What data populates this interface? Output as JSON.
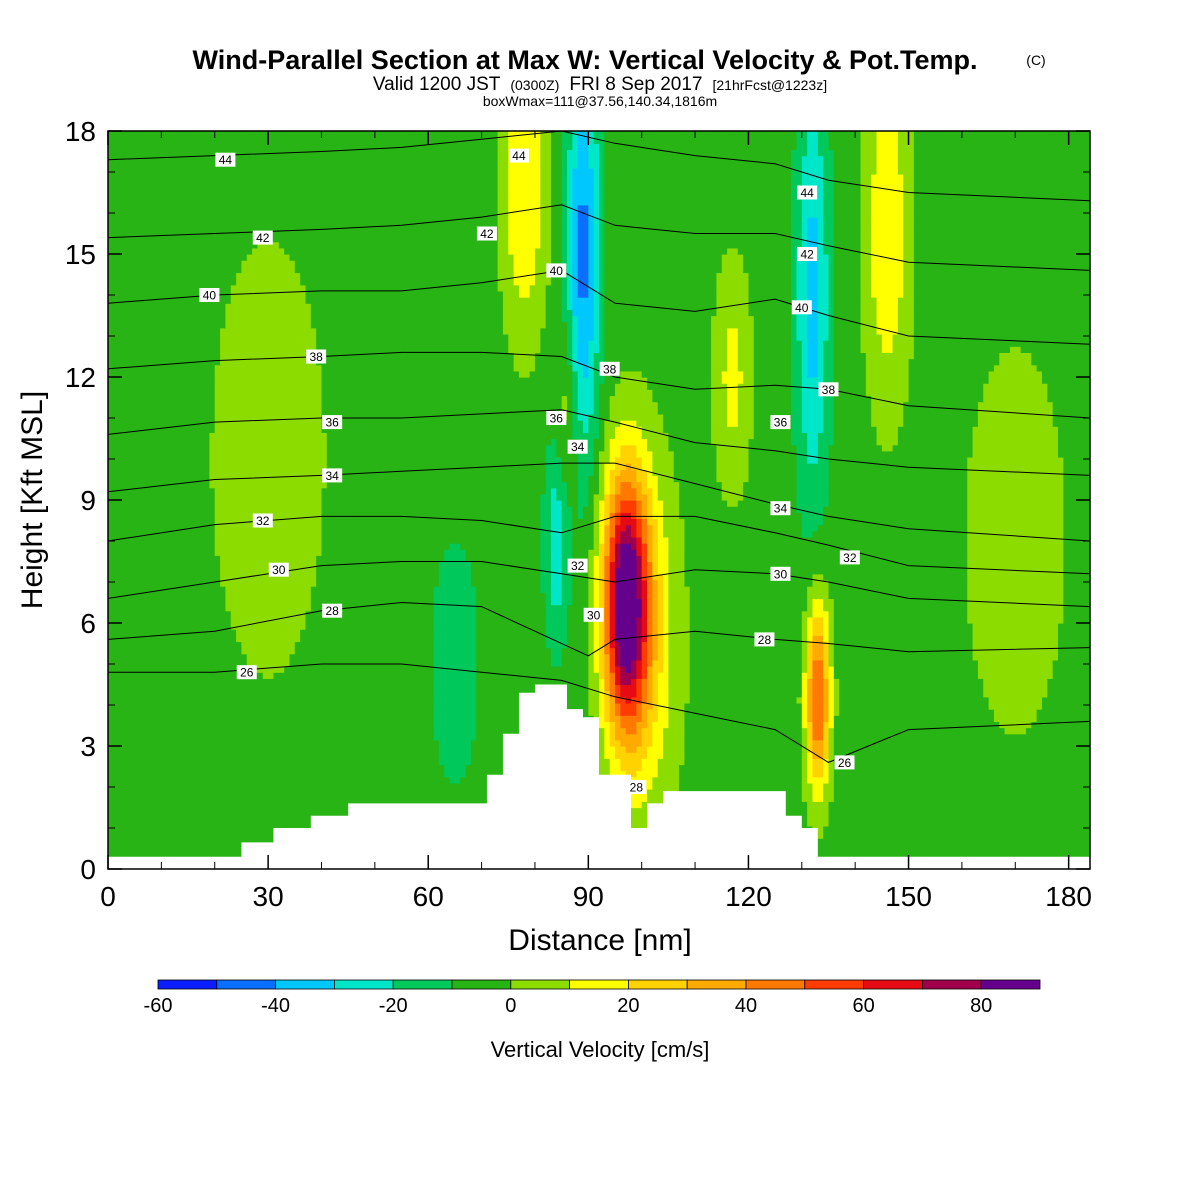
{
  "title": {
    "main": "Wind-Parallel Section at Max W: Vertical Velocity & Pot.Temp.",
    "copyright": "(C)",
    "valid_prefix": "Valid 1200 JST",
    "valid_utc": "(0300Z)",
    "valid_date": "FRI 8 Sep 2017",
    "forecast": "[21hrFcst@1223z]",
    "boxwmax": "boxWmax=111@37.56,140.34,1816m"
  },
  "chart_data": {
    "type": "heatmap",
    "title": "Wind-Parallel Section at Max W: Vertical Velocity & Pot.Temp.",
    "xlabel": "Distance [nm]",
    "ylabel": "Height [Kft MSL]",
    "xlim": [
      0,
      184
    ],
    "ylim": [
      0,
      18
    ],
    "x_ticks": [
      "0",
      "30",
      "60",
      "90",
      "120",
      "150",
      "180"
    ],
    "y_ticks": [
      "0",
      "3",
      "6",
      "9",
      "12",
      "15",
      "18"
    ],
    "x_tick_values": [
      0,
      30,
      60,
      90,
      120,
      150,
      180
    ],
    "y_tick_values": [
      0,
      3,
      6,
      9,
      12,
      15,
      18
    ],
    "colorbar": {
      "title": "Vertical Velocity [cm/s]",
      "levels": [
        -60,
        -50,
        -40,
        -30,
        -20,
        -10,
        0,
        10,
        20,
        30,
        40,
        50,
        60,
        70,
        80,
        90
      ],
      "labels": [
        "-60",
        "-40",
        "-20",
        "0",
        "20",
        "40",
        "60",
        "80"
      ],
      "label_values": [
        -60,
        -40,
        -20,
        0,
        20,
        40,
        60,
        80
      ],
      "colors": [
        "#0a1eff",
        "#0a6eff",
        "#00c8ff",
        "#00e6c8",
        "#00c85a",
        "#28b414",
        "#8cdc00",
        "#ffff00",
        "#ffd200",
        "#ffaa00",
        "#ff7800",
        "#ff3c00",
        "#e60a14",
        "#a0004b",
        "#64008c"
      ]
    },
    "background_level": -5,
    "velocity_features": [
      {
        "x": 97,
        "y": 6.5,
        "sx": 3.0,
        "sy": 2.2,
        "w": 93
      },
      {
        "x": 101,
        "y": 5.5,
        "sx": 4.5,
        "sy": 3.2,
        "w": 22
      },
      {
        "x": 133,
        "y": 4.2,
        "sx": 1.6,
        "sy": 1.6,
        "w": 58
      },
      {
        "x": 84,
        "y": 8.0,
        "sx": 1.6,
        "sy": 1.8,
        "w": -22
      },
      {
        "x": 89,
        "y": 15.0,
        "sx": 2.2,
        "sy": 3.5,
        "w": -38
      },
      {
        "x": 132,
        "y": 14.0,
        "sx": 2.2,
        "sy": 3.5,
        "w": -30
      },
      {
        "x": 78,
        "y": 16.5,
        "sx": 3.0,
        "sy": 2.5,
        "w": 25
      },
      {
        "x": 146,
        "y": 15.5,
        "sx": 3.0,
        "sy": 3.0,
        "w": 24
      },
      {
        "x": 117,
        "y": 12.0,
        "sx": 2.5,
        "sy": 2.0,
        "w": 18
      },
      {
        "x": 86,
        "y": 11.0,
        "sx": 1.5,
        "sy": 1.5,
        "w": 15
      },
      {
        "x": 30,
        "y": 10.0,
        "sx": 8.0,
        "sy": 4.0,
        "w": 12
      },
      {
        "x": 65,
        "y": 5.0,
        "sx": 3.0,
        "sy": 2.0,
        "w": -15
      },
      {
        "x": 170,
        "y": 8.0,
        "sx": 8.0,
        "sy": 4.0,
        "w": 10
      }
    ],
    "terrain": {
      "x": [
        0,
        25,
        25,
        31,
        31,
        38,
        38,
        45,
        45,
        71,
        71,
        74,
        74,
        77,
        77,
        80,
        80,
        83,
        83,
        86,
        86,
        89,
        89,
        92,
        92,
        98,
        98,
        101,
        101,
        104,
        104,
        107,
        107,
        117,
        117,
        127,
        127,
        130,
        130,
        133,
        133,
        184
      ],
      "y": [
        0.3,
        0.3,
        0.65,
        0.65,
        1.0,
        1.0,
        1.3,
        1.3,
        1.6,
        1.6,
        2.3,
        2.3,
        3.3,
        3.3,
        4.3,
        4.3,
        4.5,
        4.5,
        4.5,
        4.5,
        3.9,
        3.9,
        3.7,
        3.7,
        2.3,
        2.3,
        1.0,
        1.0,
        1.6,
        1.6,
        1.9,
        1.9,
        1.9,
        1.9,
        1.9,
        1.9,
        1.3,
        1.3,
        1.0,
        1.0,
        0.3,
        0.3
      ]
    },
    "theta_contours": [
      {
        "label": "26",
        "x": [
          0,
          20,
          40,
          55,
          70,
          85,
          95,
          110,
          125,
          135,
          150,
          184
        ],
        "y": [
          4.8,
          4.8,
          5.0,
          5.0,
          4.8,
          4.6,
          4.2,
          3.8,
          3.4,
          2.6,
          3.4,
          3.6
        ]
      },
      {
        "label": "28",
        "x": [
          0,
          20,
          40,
          55,
          70,
          80,
          90,
          95,
          110,
          125,
          135,
          150,
          184
        ],
        "y": [
          5.6,
          5.8,
          6.3,
          6.5,
          6.4,
          5.8,
          5.2,
          5.6,
          5.8,
          5.6,
          5.5,
          5.3,
          5.4
        ]
      },
      {
        "label": "30",
        "x": [
          0,
          20,
          40,
          55,
          70,
          85,
          95,
          110,
          125,
          135,
          150,
          184
        ],
        "y": [
          6.6,
          7.0,
          7.4,
          7.5,
          7.5,
          7.2,
          7.0,
          7.3,
          7.2,
          7.0,
          6.6,
          6.4
        ]
      },
      {
        "label": "32",
        "x": [
          0,
          20,
          40,
          55,
          70,
          85,
          95,
          110,
          125,
          135,
          150,
          184
        ],
        "y": [
          8.0,
          8.4,
          8.6,
          8.6,
          8.5,
          8.2,
          8.6,
          8.6,
          8.2,
          7.9,
          7.4,
          7.2
        ]
      },
      {
        "label": "34",
        "x": [
          0,
          20,
          40,
          55,
          70,
          85,
          95,
          110,
          125,
          135,
          150,
          184
        ],
        "y": [
          9.2,
          9.5,
          9.6,
          9.7,
          9.8,
          9.9,
          9.9,
          9.4,
          8.9,
          8.6,
          8.3,
          8.0
        ]
      },
      {
        "label": "36",
        "x": [
          0,
          20,
          40,
          55,
          70,
          85,
          95,
          110,
          125,
          135,
          150,
          184
        ],
        "y": [
          10.6,
          10.9,
          11.0,
          11.0,
          11.1,
          11.2,
          10.9,
          10.4,
          10.2,
          10.0,
          9.8,
          9.6
        ]
      },
      {
        "label": "38",
        "x": [
          0,
          20,
          40,
          55,
          70,
          85,
          95,
          110,
          125,
          135,
          150,
          184
        ],
        "y": [
          12.2,
          12.4,
          12.5,
          12.6,
          12.6,
          12.5,
          12.0,
          11.7,
          11.8,
          11.7,
          11.3,
          11.0
        ]
      },
      {
        "label": "40",
        "x": [
          0,
          20,
          40,
          55,
          70,
          85,
          95,
          110,
          125,
          135,
          150,
          184
        ],
        "y": [
          13.8,
          14.0,
          14.1,
          14.1,
          14.3,
          14.6,
          13.8,
          13.6,
          13.9,
          13.5,
          13.0,
          12.8
        ]
      },
      {
        "label": "42",
        "x": [
          0,
          20,
          40,
          55,
          70,
          85,
          95,
          110,
          125,
          135,
          150,
          184
        ],
        "y": [
          15.4,
          15.5,
          15.6,
          15.7,
          15.9,
          16.2,
          15.7,
          15.5,
          15.5,
          15.2,
          14.8,
          14.6
        ]
      },
      {
        "label": "44",
        "x": [
          0,
          20,
          40,
          55,
          70,
          85,
          95,
          110,
          125,
          135,
          150,
          184
        ],
        "y": [
          17.3,
          17.4,
          17.5,
          17.6,
          17.8,
          18.0,
          17.7,
          17.4,
          17.2,
          16.8,
          16.5,
          16.3
        ]
      }
    ],
    "theta_label_positions": [
      {
        "label": "44",
        "x": 22,
        "y": 17.3
      },
      {
        "label": "44",
        "x": 77,
        "y": 17.4
      },
      {
        "label": "44",
        "x": 131,
        "y": 16.5
      },
      {
        "label": "42",
        "x": 29,
        "y": 15.4
      },
      {
        "label": "42",
        "x": 71,
        "y": 15.5
      },
      {
        "label": "42",
        "x": 131,
        "y": 15.0
      },
      {
        "label": "40",
        "x": 19,
        "y": 14.0
      },
      {
        "label": "40",
        "x": 84,
        "y": 14.6
      },
      {
        "label": "40",
        "x": 130,
        "y": 13.7
      },
      {
        "label": "38",
        "x": 39,
        "y": 12.5
      },
      {
        "label": "38",
        "x": 94,
        "y": 12.2
      },
      {
        "label": "38",
        "x": 135,
        "y": 11.7
      },
      {
        "label": "36",
        "x": 42,
        "y": 10.9
      },
      {
        "label": "36",
        "x": 84,
        "y": 11.0
      },
      {
        "label": "36",
        "x": 126,
        "y": 10.9
      },
      {
        "label": "34",
        "x": 42,
        "y": 9.6
      },
      {
        "label": "34",
        "x": 88,
        "y": 10.3
      },
      {
        "label": "34",
        "x": 126,
        "y": 8.8
      },
      {
        "label": "32",
        "x": 29,
        "y": 8.5
      },
      {
        "label": "32",
        "x": 88,
        "y": 7.4
      },
      {
        "label": "32",
        "x": 139,
        "y": 7.6
      },
      {
        "label": "30",
        "x": 32,
        "y": 7.3
      },
      {
        "label": "30",
        "x": 91,
        "y": 6.2
      },
      {
        "label": "30",
        "x": 126,
        "y": 7.2
      },
      {
        "label": "28",
        "x": 42,
        "y": 6.3
      },
      {
        "label": "28",
        "x": 99,
        "y": 2.0
      },
      {
        "label": "28",
        "x": 123,
        "y": 5.6
      },
      {
        "label": "26",
        "x": 26,
        "y": 4.8
      },
      {
        "label": "26",
        "x": 138,
        "y": 2.6
      }
    ]
  }
}
